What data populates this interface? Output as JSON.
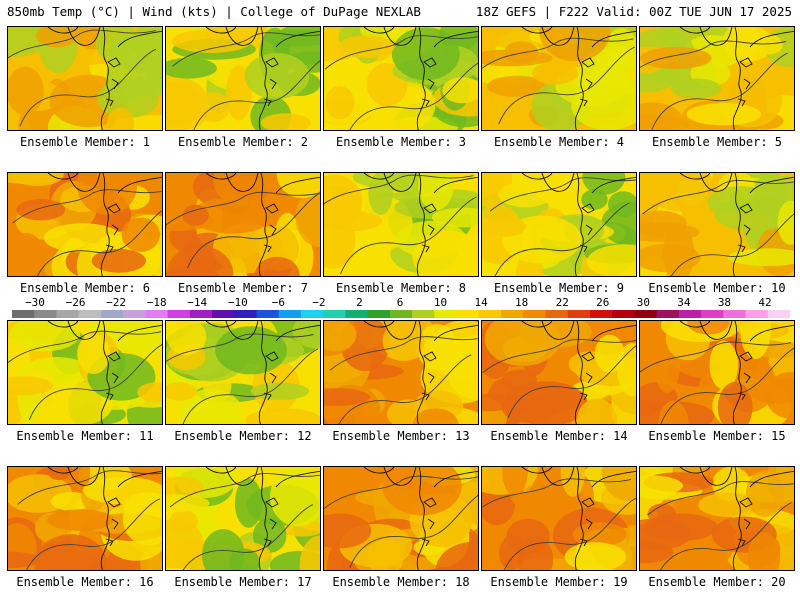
{
  "header": {
    "left": "850mb Temp (°C) | Wind (kts) | College of DuPage NEXLAB",
    "right": "18Z GEFS | F222 Valid: 00Z TUE JUN 17 2025"
  },
  "panels": [
    {
      "caption": "Ensemble Member: 1"
    },
    {
      "caption": "Ensemble Member: 2"
    },
    {
      "caption": "Ensemble Member: 3"
    },
    {
      "caption": "Ensemble Member: 4"
    },
    {
      "caption": "Ensemble Member: 5"
    },
    {
      "caption": "Ensemble Member: 6"
    },
    {
      "caption": "Ensemble Member: 7"
    },
    {
      "caption": "Ensemble Member: 8"
    },
    {
      "caption": "Ensemble Member: 9"
    },
    {
      "caption": "Ensemble Member: 10"
    },
    {
      "caption": "Ensemble Member: 11"
    },
    {
      "caption": "Ensemble Member: 12"
    },
    {
      "caption": "Ensemble Member: 13"
    },
    {
      "caption": "Ensemble Member: 14"
    },
    {
      "caption": "Ensemble Member: 15"
    },
    {
      "caption": "Ensemble Member: 16"
    },
    {
      "caption": "Ensemble Member: 17"
    },
    {
      "caption": "Ensemble Member: 18"
    },
    {
      "caption": "Ensemble Member: 19"
    },
    {
      "caption": "Ensemble Member: 20"
    }
  ],
  "colorbar": {
    "labels": [
      "−30",
      "−26",
      "−22",
      "−18",
      "−14",
      "−10",
      "−6",
      "−2",
      "2",
      "6",
      "10",
      "14",
      "18",
      "22",
      "26",
      "30",
      "34",
      "38",
      "42"
    ],
    "colors": [
      "#6e6e6e",
      "#8a8a8a",
      "#a6a6a6",
      "#bdbdbd",
      "#9fa8c9",
      "#c8a0e0",
      "#e080f0",
      "#d040e0",
      "#a020c0",
      "#6010b0",
      "#3020c0",
      "#2050e0",
      "#10a0f0",
      "#20d0f0",
      "#20d0b0",
      "#10b070",
      "#30a030",
      "#70b820",
      "#b0d020",
      "#e8e800",
      "#f8e000",
      "#f8c800",
      "#f0a800",
      "#f08800",
      "#e86810",
      "#e04010",
      "#d01010",
      "#b00010",
      "#900010",
      "#a01060",
      "#c020a0",
      "#e040c0",
      "#f070d8",
      "#f8a0e8",
      "#fcd0f4"
    ]
  }
}
